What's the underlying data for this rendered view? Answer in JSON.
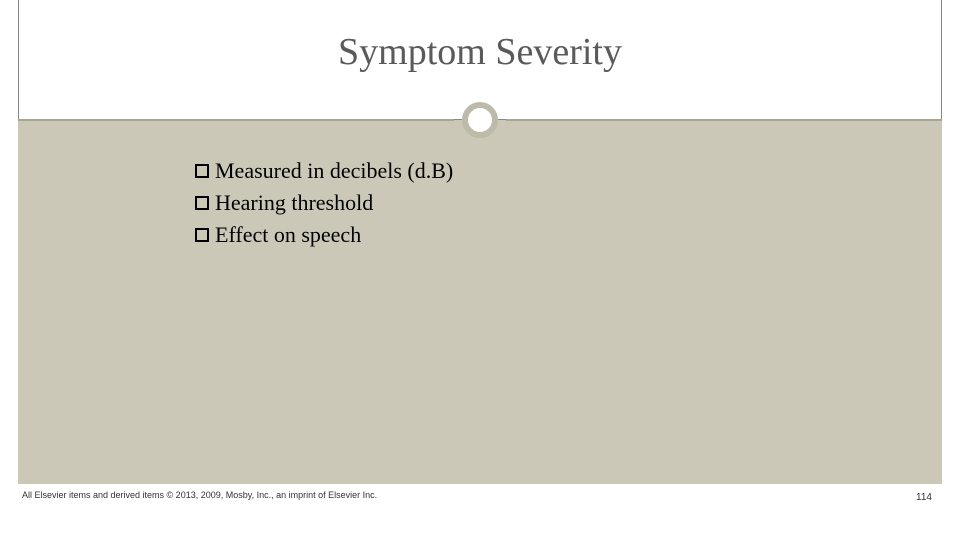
{
  "title": "Symptom Severity",
  "bullets": [
    "Measured in decibels (d.B)",
    "Hearing threshold",
    "Effect on speech"
  ],
  "footer": {
    "copyright": "All Elsevier items and derived items © 2013, 2009, Mosby, Inc., an imprint of Elsevier Inc.",
    "page": "114"
  },
  "colors": {
    "body_bg": "#cbc8b7",
    "ring": "#bdbaa9",
    "title": "#5a5a5a"
  }
}
